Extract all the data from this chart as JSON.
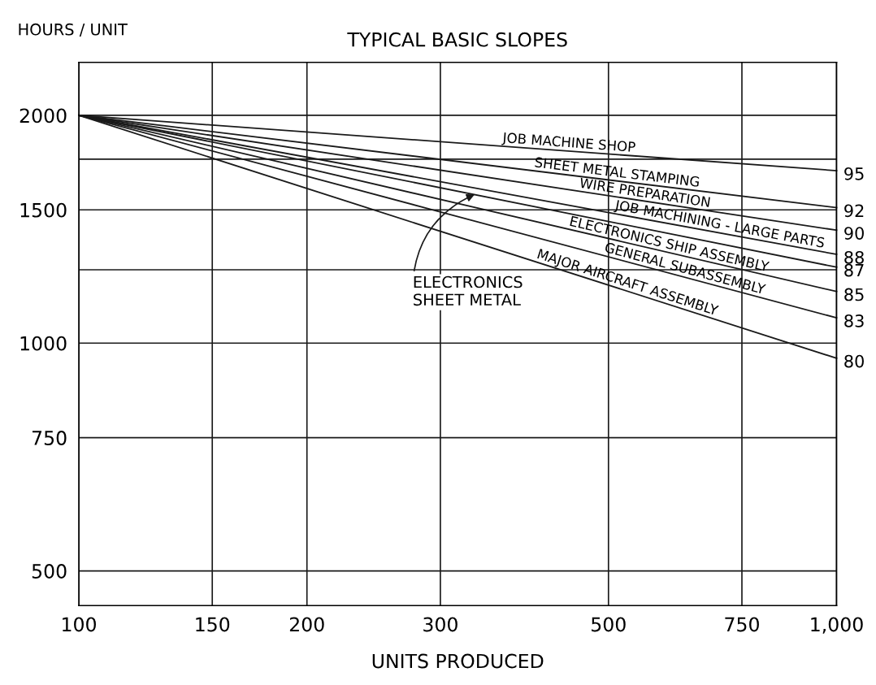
{
  "chart_data": {
    "type": "line",
    "title": "TYPICAL BASIC SLOPES",
    "xlabel": "UNITS PRODUCED",
    "ylabel": "HOURS / UNIT",
    "log": "xy",
    "grid": true,
    "legend": false,
    "marker": "none",
    "line_style": "solid",
    "xlim": [
      100,
      1000
    ],
    "ylim": [
      450,
      2350
    ],
    "xticks": [
      100,
      150,
      200,
      300,
      500,
      750,
      {
        "value": 1000,
        "label": "1,000"
      }
    ],
    "yticks": [
      500,
      750,
      1000,
      {
        "value": 1250,
        "label": null
      },
      1500,
      {
        "value": 1750,
        "label": null
      },
      2000
    ],
    "x": [
      100,
      1000
    ],
    "series": [
      {
        "name": "95",
        "color": "#1a1a1a",
        "values": [
          2000,
          1690
        ]
      },
      {
        "name": "92",
        "color": "#1a1a1a",
        "values": [
          2000,
          1510
        ]
      },
      {
        "name": "90",
        "color": "#1a1a1a",
        "values": [
          2000,
          1410
        ]
      },
      {
        "name": "88",
        "color": "#1a1a1a",
        "values": [
          2000,
          1310
        ]
      },
      {
        "name": "87",
        "color": "#1a1a1a",
        "values": [
          2000,
          1260
        ]
      },
      {
        "name": "85",
        "color": "#1a1a1a",
        "values": [
          2000,
          1170
        ]
      },
      {
        "name": "83",
        "color": "#1a1a1a",
        "values": [
          2000,
          1080
        ]
      },
      {
        "name": "80",
        "color": "#1a1a1a",
        "values": [
          2000,
          955
        ]
      }
    ],
    "annotations": [
      {
        "text": "JOB MACHINE SHOP",
        "x": 443,
        "y": 1794
      },
      {
        "text": "SHEET METAL STAMPING",
        "x": 512,
        "y": 1639
      },
      {
        "text": "WIRE PREPARATION",
        "x": 557,
        "y": 1540
      },
      {
        "text": "JOB MACHINING - LARGE PARTS",
        "x": 699,
        "y": 1400
      },
      {
        "text": "ELECTRONICS SHIP ASSEMBLY",
        "x": 598,
        "y": 1318
      },
      {
        "text": "GENERAL SUBASSEMBLY",
        "x": 627,
        "y": 1224
      },
      {
        "text": "MAJOR AIRCRAFT ASSEMBLY",
        "x": 526,
        "y": 1174
      },
      {
        "text": "ELECTRONICS\nSHEET METAL",
        "x": 333,
        "y": 1572
      }
    ]
  }
}
